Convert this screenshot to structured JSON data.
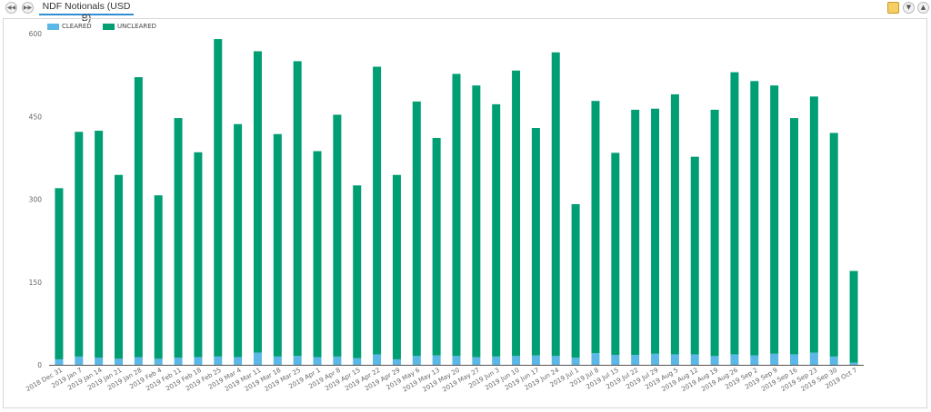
{
  "tab": {
    "title": "NDF Notionals (USD B)"
  },
  "toolbar": {
    "prev_icon": "rewind-icon",
    "next_icon": "fast-forward-icon",
    "export_icon": "document-icon",
    "collapse_icon": "chevron-down-icon",
    "expand_icon": "chevron-up-icon"
  },
  "colors": {
    "cleared": "#5bb7e5",
    "uncleared": "#009e73",
    "tab_underline": "#2e8fd4"
  },
  "chart_data": {
    "type": "bar",
    "stacked": true,
    "title": "",
    "xlabel": "",
    "ylabel": "",
    "ylim": [
      0,
      600
    ],
    "yticks": [
      "0",
      "150",
      "300",
      "450",
      "600"
    ],
    "grid": false,
    "legend_position": "top-left",
    "categories": [
      "2018 Dec 31",
      "2019 Jan 7",
      "2019 Jan 14",
      "2019 Jan 21",
      "2019 Jan 28",
      "2019 Feb 4",
      "2019 Feb 11",
      "2019 Feb 18",
      "2019 Feb 25",
      "2019 Mar 4",
      "2019 Mar 11",
      "2019 Mar 18",
      "2019 Mar 25",
      "2019 Apr 1",
      "2019 Apr 8",
      "2019 Apr 15",
      "2019 Apr 22",
      "2019 Apr 29",
      "2019 May 6",
      "2019 May 13",
      "2019 May 20",
      "2019 May 27",
      "2019 Jun 3",
      "2019 Jun 10",
      "2019 Jun 17",
      "2019 Jun 24",
      "2019 Jul 1",
      "2019 Jul 8",
      "2019 Jul 15",
      "2019 Jul 22",
      "2019 Jul 29",
      "2019 Aug 5",
      "2019 Aug 12",
      "2019 Aug 19",
      "2019 Aug 26",
      "2019 Sep 2",
      "2019 Sep 9",
      "2019 Sep 16",
      "2019 Sep 23",
      "2019 Sep 30",
      "2019 Oct 7"
    ],
    "series": [
      {
        "name": "CLEARED",
        "color": "#5bb7e5",
        "values": [
          10,
          15,
          13,
          11,
          14,
          11,
          13,
          14,
          15,
          14,
          22,
          15,
          16,
          14,
          15,
          12,
          19,
          10,
          16,
          17,
          16,
          14,
          15,
          16,
          17,
          16,
          13,
          21,
          18,
          18,
          20,
          19,
          19,
          16,
          19,
          17,
          20,
          19,
          22,
          15,
          4
        ]
      },
      {
        "name": "UNCLEARED",
        "color": "#009e73",
        "values": [
          310,
          407,
          411,
          333,
          507,
          296,
          434,
          371,
          575,
          422,
          546,
          403,
          534,
          373,
          438,
          313,
          521,
          334,
          461,
          394,
          511,
          492,
          457,
          517,
          412,
          550,
          278,
          457,
          366,
          444,
          444,
          471,
          358,
          446,
          511,
          497,
          486,
          428,
          464,
          405,
          166
        ]
      }
    ]
  }
}
